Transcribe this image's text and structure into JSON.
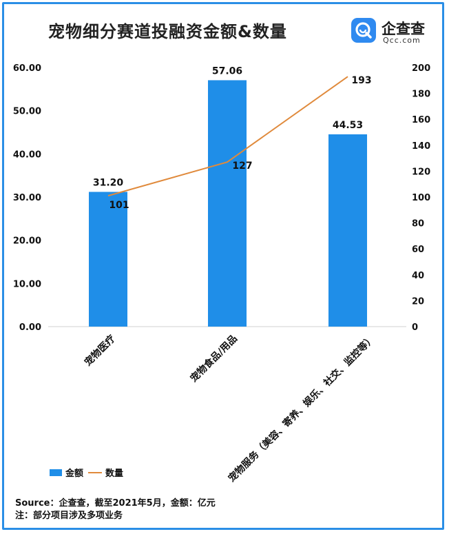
{
  "title": "宠物细分赛道投融资金额&数量",
  "logo": {
    "cn": "企查查",
    "en": "Qcc.com"
  },
  "footer": {
    "source": "Source：企查查，截至2021年5月，金额：亿元",
    "note": "注：部分项目涉及多项业务"
  },
  "colors": {
    "bar": "#1f8ee8",
    "line": "#e08a3c",
    "frame": "#2a8ee6"
  },
  "chart_data": {
    "type": "bar",
    "categories": [
      "宠物医疗",
      "宠物食品/用品",
      "宠物服务（美容、寄养、娱乐、社交、监控等）"
    ],
    "series": [
      {
        "name": "金额",
        "type": "bar",
        "axis": "left",
        "values": [
          31.2,
          57.06,
          44.53
        ],
        "labels": [
          "31.20",
          "57.06",
          "44.53"
        ]
      },
      {
        "name": "数量",
        "type": "line",
        "axis": "right",
        "values": [
          101,
          127,
          193
        ],
        "labels": [
          "101",
          "127",
          "193"
        ]
      }
    ],
    "y_left": {
      "min": 0,
      "max": 60,
      "step": 10,
      "ticks": [
        "0.00",
        "10.00",
        "20.00",
        "30.00",
        "40.00",
        "50.00",
        "60.00"
      ]
    },
    "y_right": {
      "min": 0,
      "max": 200,
      "step": 20,
      "ticks": [
        "0",
        "20",
        "40",
        "60",
        "80",
        "100",
        "120",
        "140",
        "160",
        "180",
        "200"
      ]
    },
    "legend": {
      "position": "bottom-left",
      "items": [
        "金额",
        "数量"
      ]
    },
    "grid": false
  }
}
